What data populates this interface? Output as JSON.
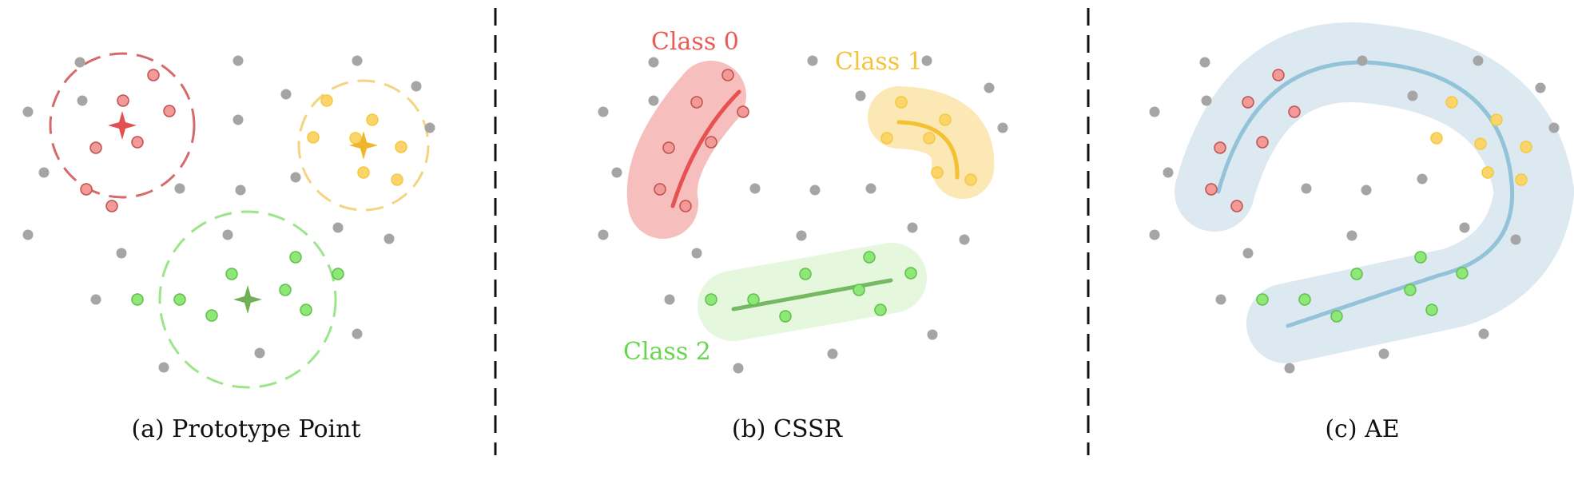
{
  "panels": {
    "a": {
      "caption": "(a) Prototype Point"
    },
    "b": {
      "caption": "(b) CSSR"
    },
    "c": {
      "caption": "(c) AE"
    }
  },
  "class_labels": {
    "class0": "Class 0",
    "class1": "Class 1",
    "class2": "Class 2"
  },
  "colors": {
    "class0": "#ec5b53",
    "class0_fill": "#f19a98",
    "class1": "#f5c33b",
    "class1_fill": "#fbd56a",
    "class2": "#67d64f",
    "class2_fill": "#8ee878",
    "unknown": "#a5a5a5",
    "ae_band": "#dde9f1",
    "ae_curve": "#93c3d9",
    "prototype0": "#e25050",
    "prototype1": "#f0b52b",
    "prototype2": "#6fb058",
    "divider": "#111111"
  }
}
